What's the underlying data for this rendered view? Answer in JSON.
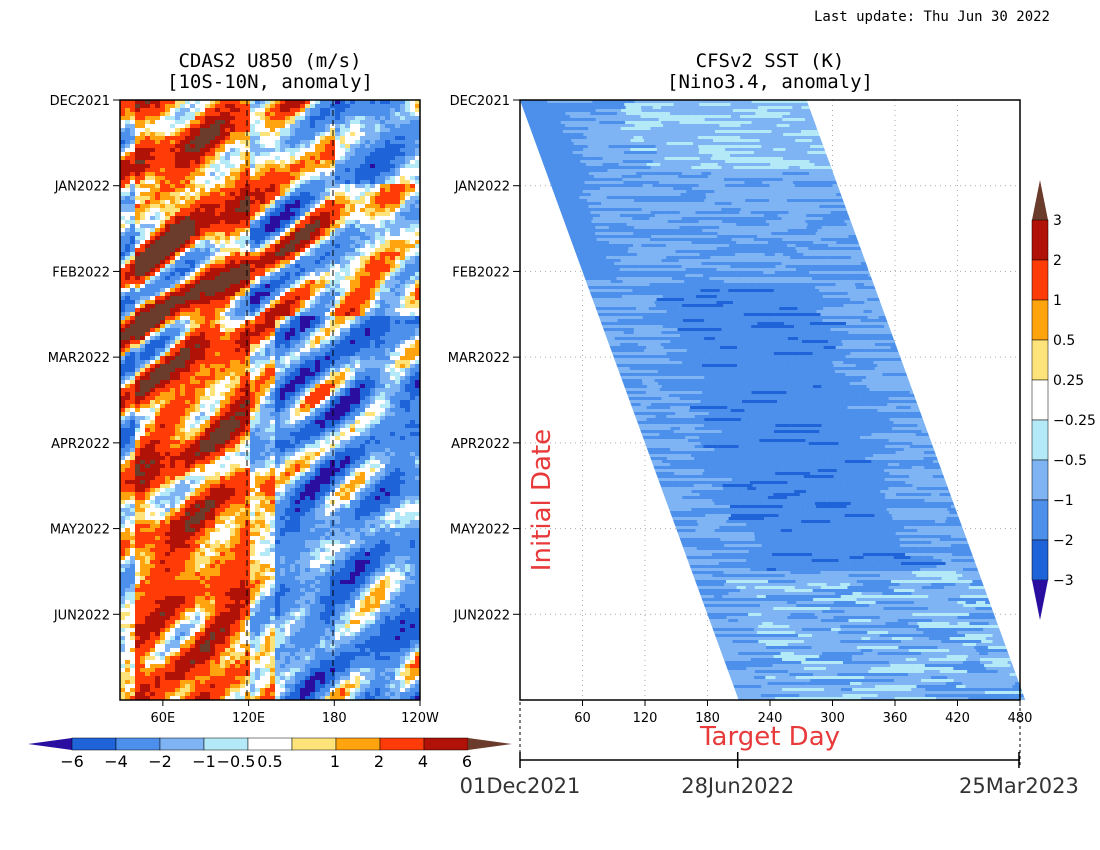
{
  "last_update": "Last update: Thu Jun 30 2022",
  "colors": {
    "c_neg_beyond": "#2a0ea0",
    "c_neg_6": "#1f63d8",
    "c_neg_4": "#4d90ec",
    "c_neg_2": "#7eb4f4",
    "c_neg_1": "#b4e9f7",
    "c_neutral": "#ffffff",
    "c_pos_1": "#fde37a",
    "c_pos_2": "#ffa30f",
    "c_pos_4": "#ff3c08",
    "c_pos_6": "#b01208",
    "c_pos_beyond": "#6b3b2c",
    "target_red": "#e83a3a"
  },
  "chart_data": [
    {
      "type": "heatmap",
      "title": "CDAS2 U850 (m/s)",
      "subtitle": "[10S-10N, anomaly]",
      "x_tick_labels": [
        "60E",
        "120E",
        "180",
        "120W"
      ],
      "y_tick_labels": [
        "DEC2021",
        "JAN2022",
        "FEB2022",
        "MAR2022",
        "APR2022",
        "MAY2022",
        "JUN2022"
      ],
      "xlim_lon_deg": [
        30,
        240
      ],
      "dashed_meridians": [
        "120E",
        "180"
      ],
      "colorbar": {
        "orientation": "horizontal",
        "labels": [
          "−6",
          "−4",
          "−2",
          "−1",
          "−0.5",
          "0.5",
          "1",
          "2",
          "4",
          "6"
        ],
        "levels": [
          -6,
          -4,
          -2,
          -1,
          -0.5,
          0.5,
          1,
          2,
          4,
          6
        ]
      },
      "field_description_note": "",
      "regions": [
        {
          "lon": [
            40,
            120
          ],
          "months": [
            0,
            7
          ],
          "sign": "positive"
        },
        {
          "lon": [
            180,
            240
          ],
          "months": [
            0,
            1
          ],
          "sign": "negative"
        },
        {
          "lon": [
            140,
            240
          ],
          "months": [
            2.5,
            7
          ],
          "sign": "negative"
        }
      ]
    },
    {
      "type": "heatmap",
      "title": "CFSv2 SST (K)",
      "subtitle": "[Nino3.4, anomaly]",
      "x_tick_labels": [
        "60",
        "120",
        "180",
        "240",
        "300",
        "360",
        "420",
        "480"
      ],
      "xlim": [
        0,
        480
      ],
      "y_tick_labels": [
        "DEC2021",
        "JAN2022",
        "FEB2022",
        "MAR2022",
        "APR2022",
        "MAY2022",
        "JUN2022"
      ],
      "ylabel": "Initial Date",
      "xlabel": "Target Day",
      "grid": true,
      "forecast_band": {
        "start_day_at_top": 0,
        "start_day_at_bottom": 210,
        "lead_days": 275
      },
      "date_axis": {
        "labels": [
          "01Dec2021",
          "28Jun2022",
          "25Mar2023"
        ],
        "days": [
          0,
          209,
          479
        ]
      },
      "colorbar": {
        "orientation": "vertical",
        "labels": [
          "3",
          "2",
          "1",
          "0.5",
          "0.25",
          "−0.25",
          "−0.5",
          "−1",
          "−2",
          "−3"
        ],
        "levels": [
          3,
          2,
          1,
          0.5,
          0.25,
          -0.25,
          -0.5,
          -1,
          -2,
          -3
        ]
      },
      "dominant_anomaly_K": [
        -1.5,
        -0.5
      ]
    }
  ]
}
